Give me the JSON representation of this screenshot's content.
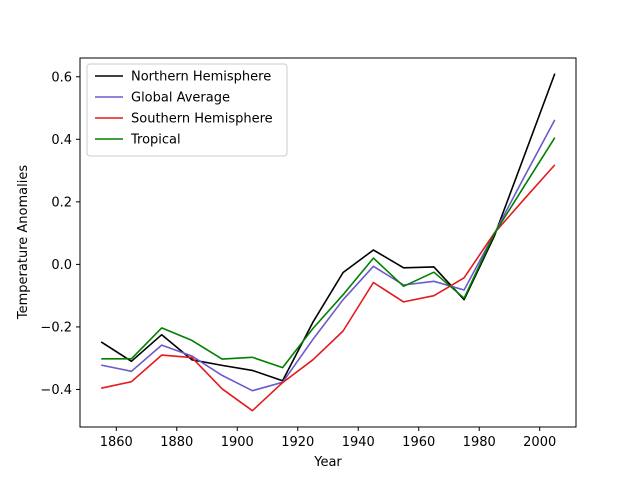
{
  "chart_data": {
    "type": "line",
    "title": "",
    "xlabel": "Year",
    "ylabel": "Temperature Anomalies",
    "xlim": [
      1848,
      2012
    ],
    "ylim": [
      -0.52,
      0.66
    ],
    "xticks": [
      1860,
      1880,
      1900,
      1920,
      1940,
      1960,
      1980,
      2000
    ],
    "yticks": [
      -0.4,
      -0.2,
      0.0,
      0.2,
      0.4,
      0.6
    ],
    "ytick_labels": [
      "−0.4",
      "−0.2",
      "0.0",
      "0.2",
      "0.4",
      "0.6"
    ],
    "grid": false,
    "legend_position": "top-left",
    "x": [
      1855,
      1865,
      1875,
      1885,
      1895,
      1905,
      1915,
      1925,
      1935,
      1945,
      1955,
      1965,
      1975,
      1985,
      1995,
      2005
    ],
    "series": [
      {
        "name": "Northern Hemisphere",
        "color": "#000000",
        "values": [
          -0.248,
          -0.31,
          -0.225,
          -0.305,
          -0.323,
          -0.339,
          -0.372,
          -0.185,
          -0.026,
          0.046,
          -0.011,
          -0.008,
          -0.113,
          0.09,
          0.35,
          0.61
        ]
      },
      {
        "name": "Global Average",
        "color": "#6a5acd",
        "values": [
          -0.322,
          -0.342,
          -0.258,
          -0.293,
          -0.355,
          -0.404,
          -0.377,
          -0.24,
          -0.113,
          -0.006,
          -0.066,
          -0.054,
          -0.082,
          0.098,
          0.282,
          0.462
        ]
      },
      {
        "name": "Southern Hemisphere",
        "color": "#e41a1c",
        "values": [
          -0.396,
          -0.375,
          -0.29,
          -0.298,
          -0.398,
          -0.468,
          -0.378,
          -0.305,
          -0.213,
          -0.058,
          -0.12,
          -0.1,
          -0.043,
          0.1,
          0.21,
          0.318
        ]
      },
      {
        "name": "Tropical",
        "color": "#008000",
        "values": [
          -0.302,
          -0.302,
          -0.203,
          -0.243,
          -0.303,
          -0.297,
          -0.33,
          -0.205,
          -0.097,
          0.02,
          -0.07,
          -0.025,
          -0.108,
          0.098,
          0.252,
          0.405
        ]
      }
    ]
  }
}
